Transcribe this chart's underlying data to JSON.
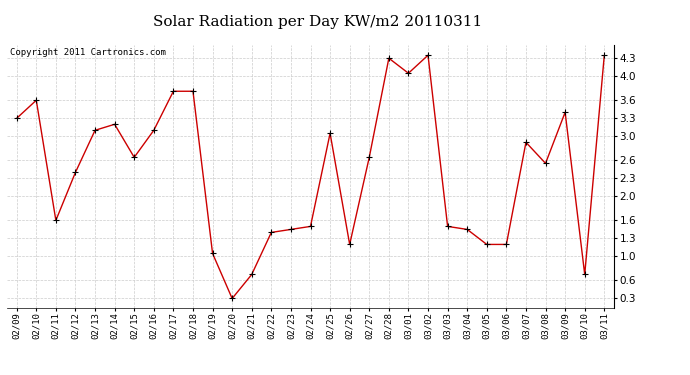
{
  "title": "Solar Radiation per Day KW/m2 20110311",
  "copyright": "Copyright 2011 Cartronics.com",
  "dates": [
    "02/09",
    "02/10",
    "02/11",
    "02/12",
    "02/13",
    "02/14",
    "02/15",
    "02/16",
    "02/17",
    "02/18",
    "02/19",
    "02/20",
    "02/21",
    "02/22",
    "02/23",
    "02/24",
    "02/25",
    "02/26",
    "02/27",
    "02/28",
    "03/01",
    "03/02",
    "03/03",
    "03/04",
    "03/05",
    "03/06",
    "03/07",
    "03/08",
    "03/09",
    "03/10",
    "03/11"
  ],
  "values": [
    3.3,
    3.6,
    1.6,
    2.4,
    3.1,
    3.2,
    2.65,
    3.1,
    3.75,
    3.75,
    1.05,
    0.3,
    0.7,
    1.4,
    1.45,
    1.5,
    3.05,
    1.2,
    2.65,
    4.3,
    4.05,
    4.35,
    1.5,
    1.45,
    1.2,
    1.2,
    2.9,
    2.55,
    3.4,
    0.7,
    4.35
  ],
  "line_color": "#cc0000",
  "bg_color": "#ffffff",
  "grid_color": "#cccccc",
  "yticks": [
    0.3,
    0.6,
    1.0,
    1.3,
    1.6,
    2.0,
    2.3,
    2.6,
    3.0,
    3.3,
    3.6,
    4.0,
    4.3
  ],
  "ylim": [
    0.15,
    4.52
  ],
  "title_fontsize": 11,
  "copyright_fontsize": 6.5
}
